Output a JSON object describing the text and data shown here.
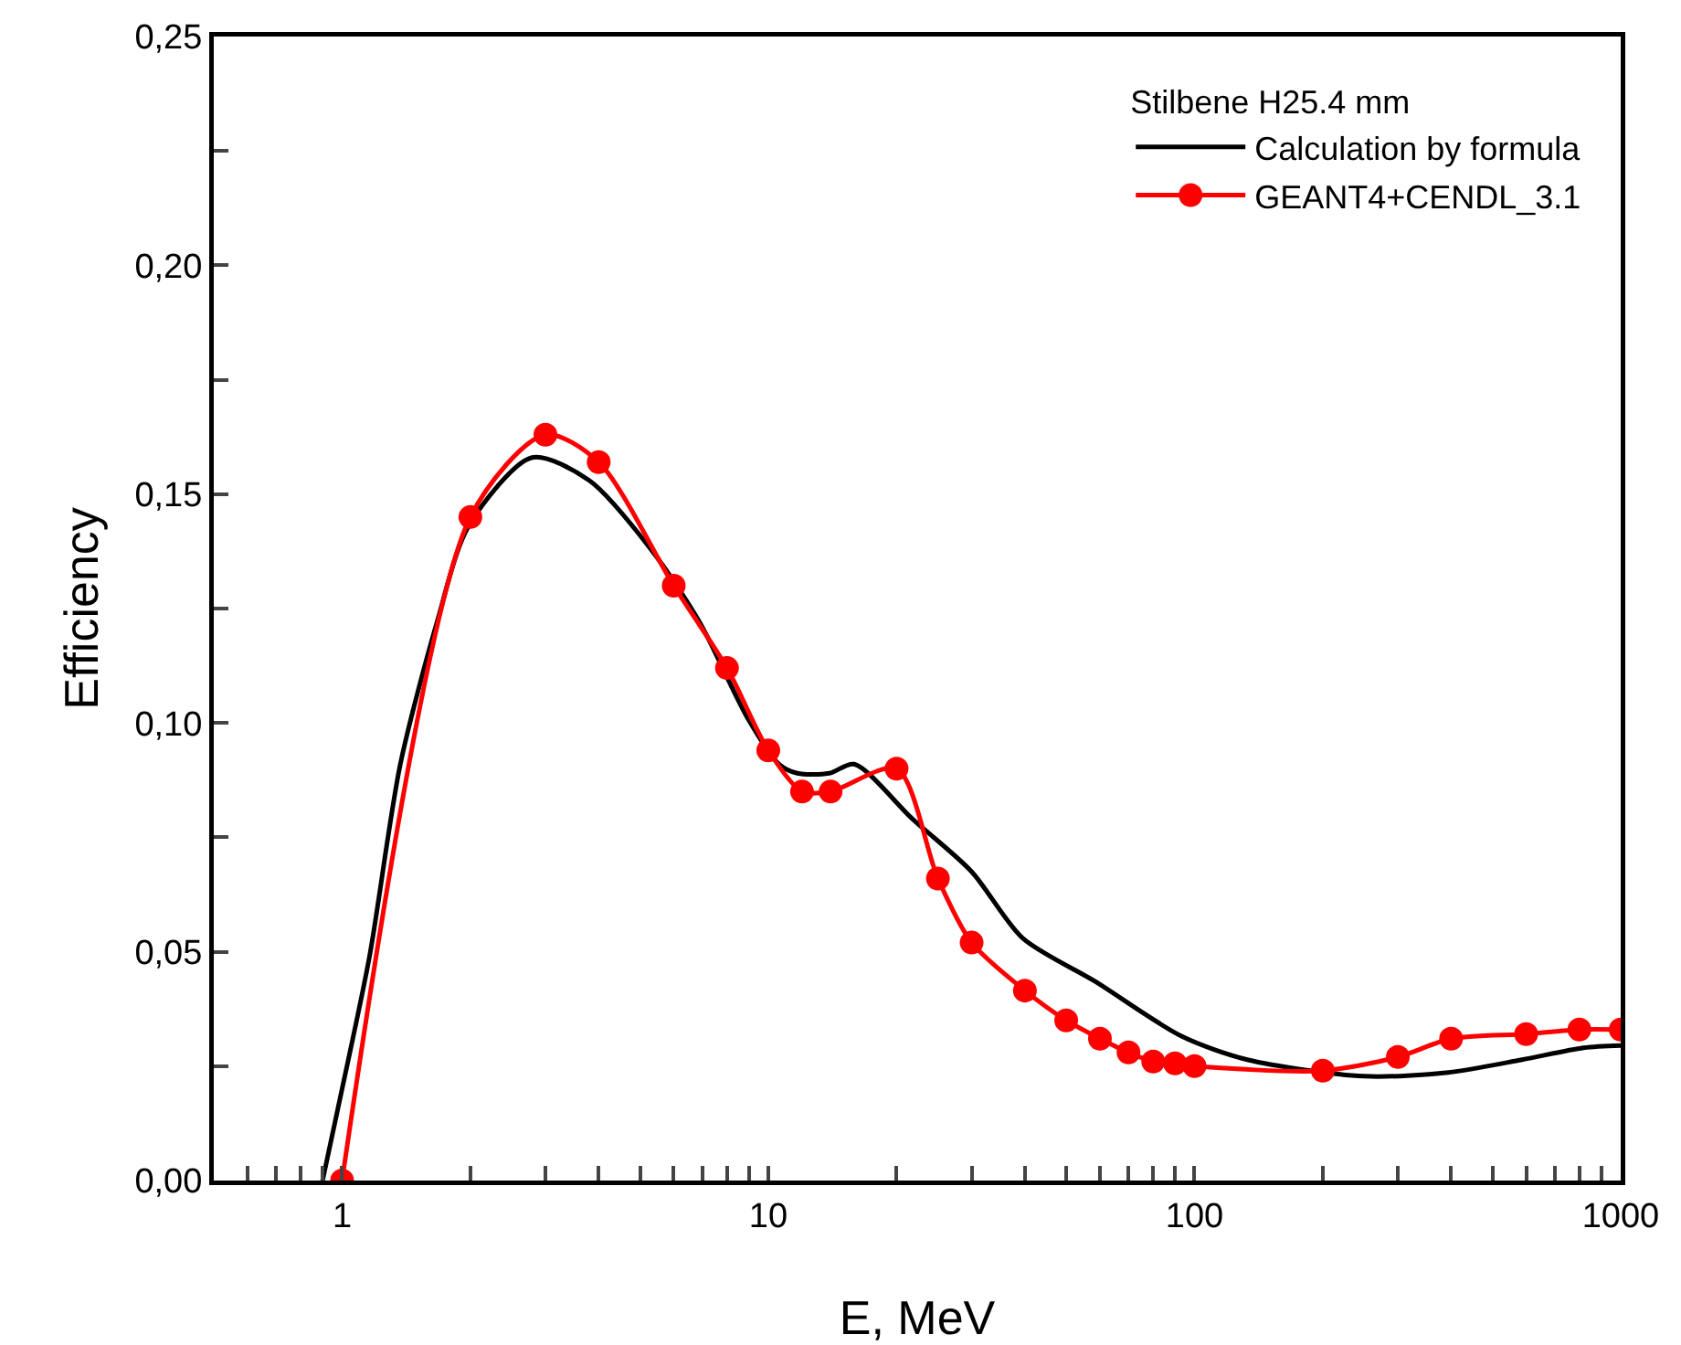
{
  "chart_data": {
    "type": "line",
    "xlabel": "E, MeV",
    "ylabel": "Efficiency",
    "legend_title": "Stilbene H25.4 mm",
    "log": "x",
    "grid": false,
    "legend": "top right",
    "xlim": [
      0.5,
      1000
    ],
    "xticks": [
      {
        "value": 0.6,
        "label": null
      },
      {
        "value": 0.7,
        "label": null
      },
      {
        "value": 0.8,
        "label": null
      },
      {
        "value": 0.9,
        "label": null
      },
      1,
      {
        "value": 2,
        "label": null
      },
      {
        "value": 3,
        "label": null
      },
      {
        "value": 4,
        "label": null
      },
      {
        "value": 5,
        "label": null
      },
      {
        "value": 6,
        "label": null
      },
      {
        "value": 7,
        "label": null
      },
      {
        "value": 8,
        "label": null
      },
      {
        "value": 9,
        "label": null
      },
      10,
      {
        "value": 20,
        "label": null
      },
      {
        "value": 30,
        "label": null
      },
      {
        "value": 40,
        "label": null
      },
      {
        "value": 50,
        "label": null
      },
      {
        "value": 60,
        "label": null
      },
      {
        "value": 70,
        "label": null
      },
      {
        "value": 80,
        "label": null
      },
      {
        "value": 90,
        "label": null
      },
      100,
      {
        "value": 200,
        "label": null
      },
      {
        "value": 300,
        "label": null
      },
      {
        "value": 400,
        "label": null
      },
      {
        "value": 500,
        "label": null
      },
      {
        "value": 600,
        "label": null
      },
      {
        "value": 700,
        "label": null
      },
      {
        "value": 800,
        "label": null
      },
      {
        "value": 900,
        "label": null
      },
      1000
    ],
    "ylim": [
      0,
      0.25
    ],
    "yticks": [
      {
        "value": 0,
        "label": "0,00"
      },
      {
        "value": 0.025,
        "label": null
      },
      {
        "value": 0.05,
        "label": "0,05"
      },
      {
        "value": 0.075,
        "label": null
      },
      {
        "value": 0.1,
        "label": "0,10"
      },
      {
        "value": 0.125,
        "label": null
      },
      {
        "value": 0.15,
        "label": "0,15"
      },
      {
        "value": 0.175,
        "label": null
      },
      {
        "value": 0.2,
        "label": "0,20"
      },
      {
        "value": 0.225,
        "label": null
      },
      {
        "value": 0.25,
        "label": "0,25"
      }
    ],
    "series": [
      {
        "name": "Calculation by formula",
        "color": "#000000",
        "marker": "none",
        "line_style": "solid",
        "x": [
          0.9,
          1.0,
          1.16,
          1.37,
          1.67,
          1.98,
          2.79,
          3.8,
          5.3,
          6.9,
          8.95,
          10.6,
          11.7,
          13.9,
          15.9,
          21.8,
          30,
          39.5,
          58.5,
          93,
          133,
          250,
          394,
          587,
          818,
          1000
        ],
        "values": [
          0,
          0.02,
          0.049,
          0.091,
          0.122,
          0.143,
          0.158,
          0.153,
          0.138,
          0.122,
          0.101,
          0.091,
          0.089,
          0.089,
          0.091,
          0.079,
          0.0675,
          0.053,
          0.0435,
          0.0316,
          0.0264,
          0.0228,
          0.0236,
          0.0264,
          0.029,
          0.0295
        ]
      },
      {
        "name": "GEANT4+CENDL_3.1",
        "color": "#ff0000",
        "marker": "circle",
        "line_style": "solid",
        "x": [
          1,
          2,
          3,
          4,
          6,
          8,
          10,
          12,
          14,
          20,
          25,
          30,
          40,
          50,
          60,
          70,
          80,
          90,
          100,
          200,
          300,
          400,
          600,
          800,
          1000
        ],
        "values": [
          0,
          0.145,
          0.163,
          0.157,
          0.13,
          0.112,
          0.094,
          0.085,
          0.085,
          0.09,
          0.066,
          0.052,
          0.0415,
          0.035,
          0.031,
          0.028,
          0.026,
          0.0256,
          0.025,
          0.024,
          0.027,
          0.031,
          0.032,
          0.033,
          0.033
        ]
      }
    ]
  }
}
